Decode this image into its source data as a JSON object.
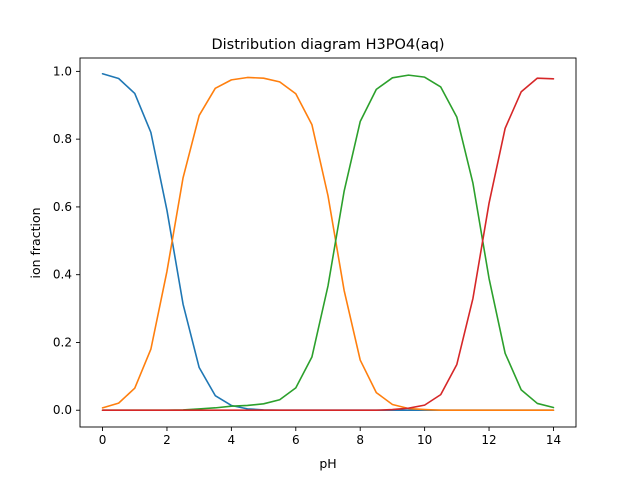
{
  "chart_data": {
    "type": "line",
    "title": "Distribution diagram H3PO4(aq)",
    "xlabel": "pH",
    "ylabel": "ion fraction",
    "xlim": [
      -0.7,
      14.7
    ],
    "ylim": [
      -0.0495,
      1.0395
    ],
    "xticks": [
      0,
      2,
      4,
      6,
      8,
      10,
      12,
      14
    ],
    "xtick_labels": [
      "0",
      "2",
      "4",
      "6",
      "8",
      "10",
      "12",
      "14"
    ],
    "yticks": [
      0.0,
      0.2,
      0.4,
      0.6,
      0.8,
      1.0
    ],
    "ytick_labels": [
      "0.0",
      "0.2",
      "0.4",
      "0.6",
      "0.8",
      "1.0"
    ],
    "grid": false,
    "x": [
      0,
      0.5,
      1,
      1.5,
      2,
      2.5,
      3,
      3.5,
      4,
      4.5,
      5,
      5.5,
      6,
      6.5,
      7,
      7.5,
      8,
      8.5,
      9,
      9.5,
      10,
      10.5,
      11,
      11.5,
      12,
      12.5,
      13,
      13.5,
      14
    ],
    "series": [
      {
        "color": "#1f77b4",
        "values": [
          0.993,
          0.979,
          0.935,
          0.82,
          0.59,
          0.313,
          0.126,
          0.043,
          0.014,
          0.004,
          0.001,
          0,
          0,
          0,
          0,
          0,
          0,
          0,
          0,
          0,
          0,
          0,
          0,
          0,
          0,
          0,
          0,
          0,
          0
        ]
      },
      {
        "color": "#ff7f0e",
        "values": [
          0.007,
          0.021,
          0.065,
          0.18,
          0.41,
          0.686,
          0.87,
          0.95,
          0.975,
          0.982,
          0.98,
          0.969,
          0.934,
          0.843,
          0.633,
          0.354,
          0.148,
          0.052,
          0.017,
          0.005,
          0.002,
          0,
          0,
          0,
          0,
          0,
          0,
          0,
          0
        ]
      },
      {
        "color": "#2ca02c",
        "values": [
          0,
          0,
          0,
          0,
          0,
          0.001,
          0.004,
          0.007,
          0.012,
          0.014,
          0.019,
          0.031,
          0.066,
          0.157,
          0.367,
          0.646,
          0.852,
          0.947,
          0.981,
          0.989,
          0.983,
          0.954,
          0.865,
          0.67,
          0.389,
          0.168,
          0.06,
          0.02,
          0.008
        ]
      },
      {
        "color": "#d62728",
        "values": [
          0,
          0,
          0,
          0,
          0,
          0,
          0,
          0,
          0,
          0,
          0,
          0,
          0,
          0,
          0,
          0,
          0,
          0,
          0.002,
          0.006,
          0.015,
          0.046,
          0.135,
          0.33,
          0.611,
          0.832,
          0.94,
          0.98,
          0.978
        ]
      }
    ]
  }
}
